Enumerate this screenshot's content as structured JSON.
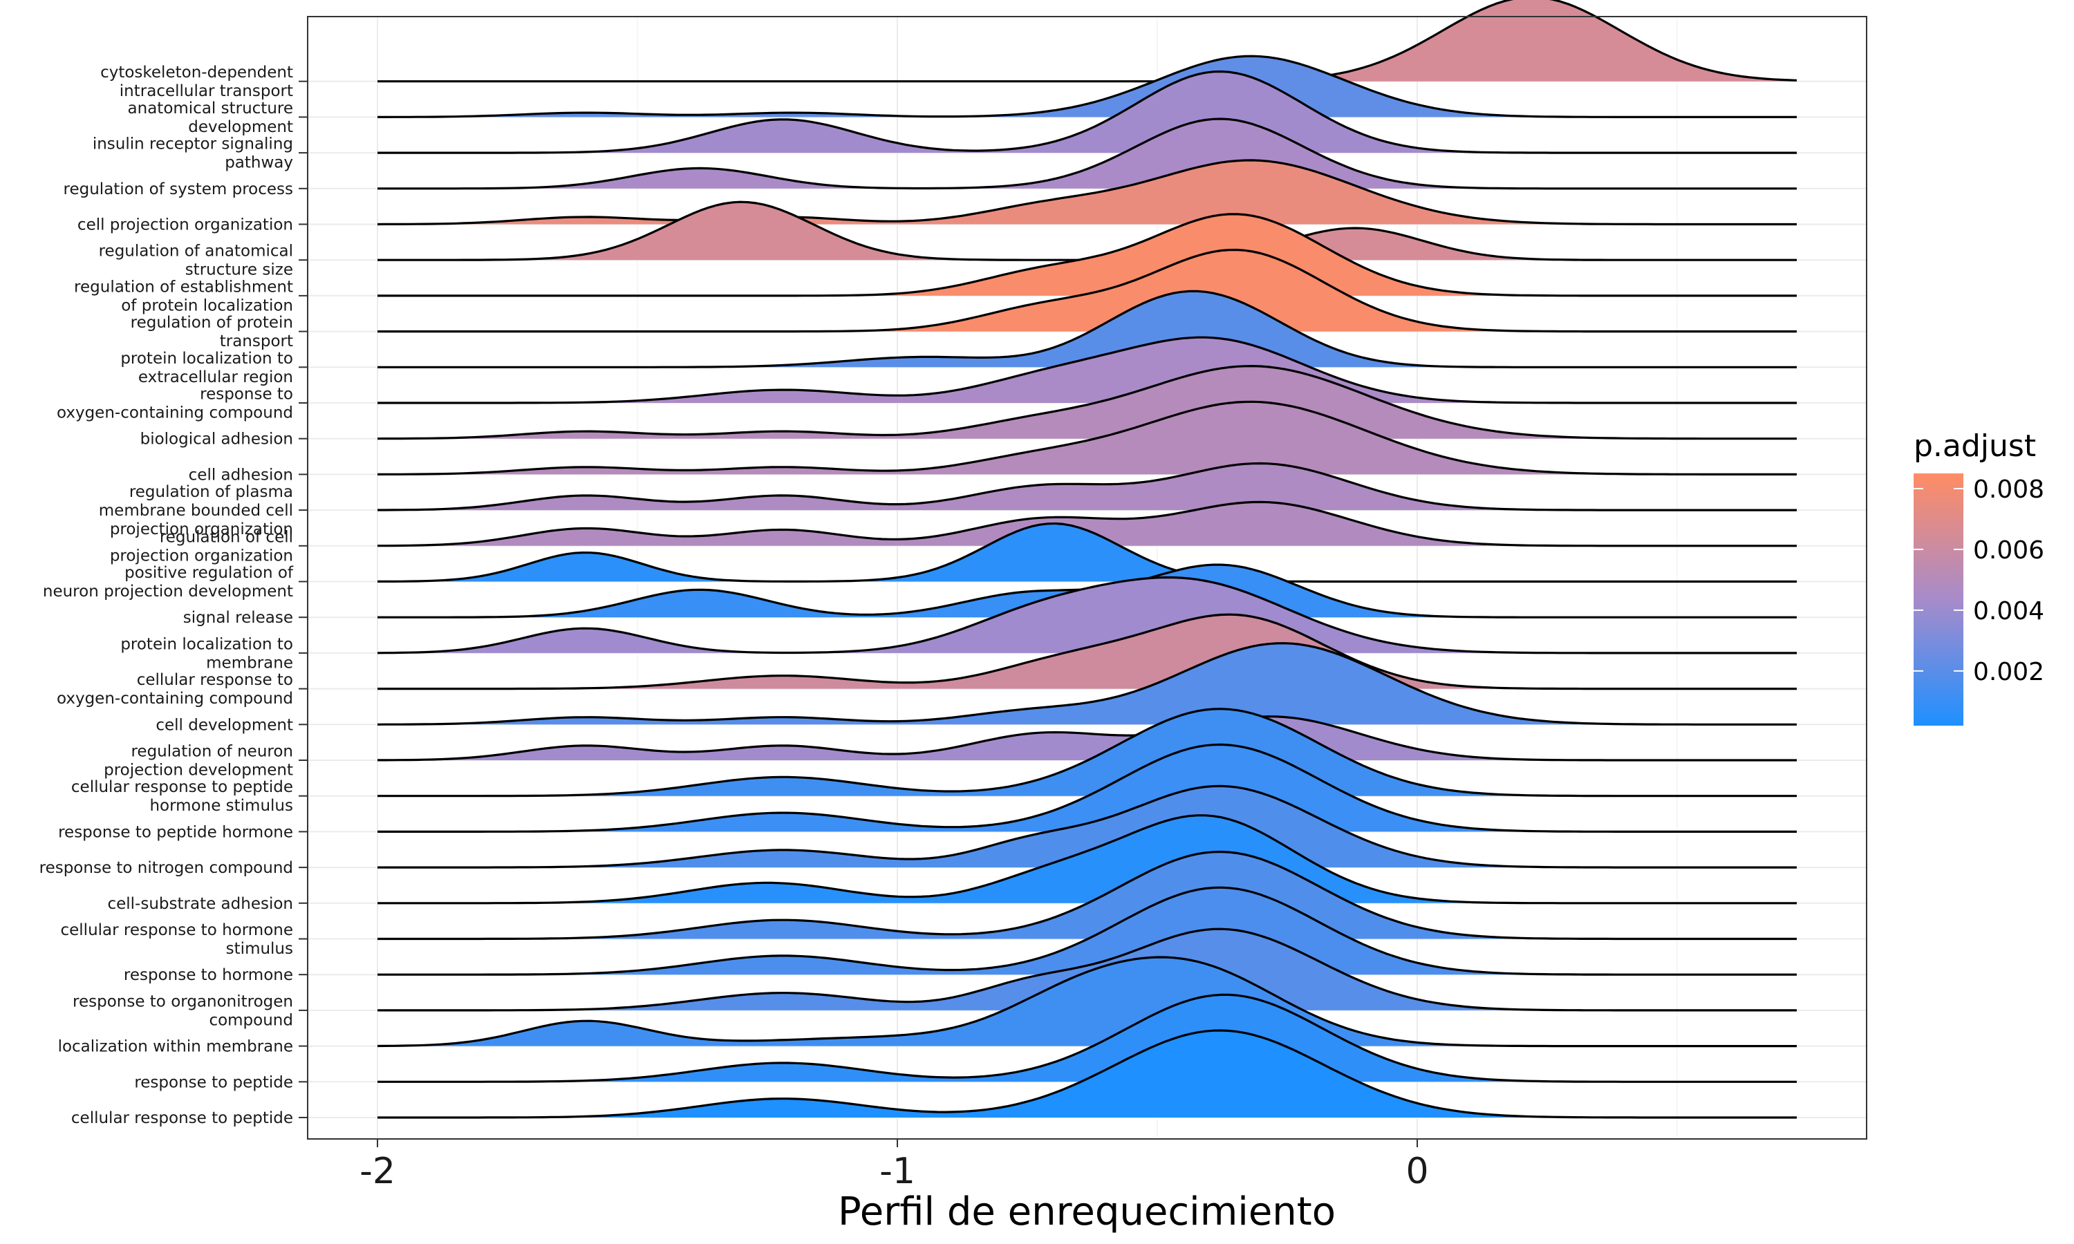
{
  "chart_data": {
    "type": "ridgeline",
    "xlabel": "Perfil de enrequecimiento",
    "xticks": [
      -2,
      -1,
      0
    ],
    "xlim": [
      -2.13,
      0.87
    ],
    "legend": {
      "title": "p.adjust",
      "position": "right",
      "ticks": [
        0.002,
        0.004,
        0.006,
        0.008
      ],
      "tick_labels": [
        "0.002",
        "0.004",
        "0.006",
        "0.008"
      ],
      "range": [
        0.0002,
        0.0085
      ],
      "color_low": "#1E90FF",
      "color_mid": "#A78BCB",
      "color_high": "#FF8C64"
    },
    "grid": true,
    "series": [
      {
        "label": [
          "cellular response to peptide"
        ],
        "p_adjust": 0.0002,
        "peaks": [
          [
            -1.22,
            0.065,
            0.16
          ],
          [
            -0.38,
            0.3,
            0.2
          ]
        ]
      },
      {
        "label": [
          "response to peptide"
        ],
        "p_adjust": 0.0007,
        "peaks": [
          [
            -1.22,
            0.065,
            0.16
          ],
          [
            -0.37,
            0.3,
            0.19
          ]
        ]
      },
      {
        "label": [
          "localization within membrane"
        ],
        "p_adjust": 0.0012,
        "peaks": [
          [
            -1.6,
            0.085,
            0.12
          ],
          [
            -1.0,
            0.03,
            0.25
          ],
          [
            -0.68,
            0.085,
            0.13
          ],
          [
            -0.45,
            0.28,
            0.18
          ]
        ]
      },
      {
        "label": [
          "response to organonitrogen",
          "compound"
        ],
        "p_adjust": 0.0019,
        "peaks": [
          [
            -1.22,
            0.06,
            0.16
          ],
          [
            -0.75,
            0.07,
            0.11
          ],
          [
            -0.38,
            0.28,
            0.19
          ]
        ]
      },
      {
        "label": [
          "response to hormone"
        ],
        "p_adjust": 0.0016,
        "peaks": [
          [
            -1.22,
            0.065,
            0.16
          ],
          [
            -0.38,
            0.3,
            0.19
          ]
        ]
      },
      {
        "label": [
          "cellular response to hormone",
          "stimulus"
        ],
        "p_adjust": 0.0017,
        "peaks": [
          [
            -1.22,
            0.065,
            0.16
          ],
          [
            -0.38,
            0.3,
            0.19
          ]
        ]
      },
      {
        "label": [
          "cell-substrate adhesion"
        ],
        "p_adjust": 0.0005,
        "peaks": [
          [
            -1.25,
            0.07,
            0.15
          ],
          [
            -0.72,
            0.07,
            0.12
          ],
          [
            -0.41,
            0.3,
            0.17
          ]
        ]
      },
      {
        "label": [
          "response to nitrogen compound"
        ],
        "p_adjust": 0.0017,
        "peaks": [
          [
            -1.22,
            0.06,
            0.16
          ],
          [
            -0.75,
            0.065,
            0.11
          ],
          [
            -0.38,
            0.28,
            0.19
          ]
        ]
      },
      {
        "label": [
          "response to peptide hormone"
        ],
        "p_adjust": 0.0011,
        "peaks": [
          [
            -1.22,
            0.065,
            0.16
          ],
          [
            -0.38,
            0.3,
            0.19
          ]
        ]
      },
      {
        "label": [
          "cellular response to peptide",
          "hormone stimulus"
        ],
        "p_adjust": 0.0012,
        "peaks": [
          [
            -1.22,
            0.065,
            0.16
          ],
          [
            -0.38,
            0.3,
            0.19
          ]
        ]
      },
      {
        "label": [
          "regulation of neuron",
          "projection development"
        ],
        "p_adjust": 0.0042,
        "peaks": [
          [
            -1.6,
            0.05,
            0.12
          ],
          [
            -1.22,
            0.05,
            0.12
          ],
          [
            -0.72,
            0.09,
            0.14
          ],
          [
            -0.28,
            0.15,
            0.17
          ]
        ]
      },
      {
        "label": [
          "cell development"
        ],
        "p_adjust": 0.0019,
        "peaks": [
          [
            -1.6,
            0.025,
            0.12
          ],
          [
            -1.22,
            0.025,
            0.12
          ],
          [
            -0.75,
            0.04,
            0.13
          ],
          [
            -0.26,
            0.28,
            0.2
          ]
        ]
      },
      {
        "label": [
          "cellular response to",
          "oxygen-containing compound"
        ],
        "p_adjust": 0.0062,
        "peaks": [
          [
            -1.22,
            0.045,
            0.15
          ],
          [
            -0.68,
            0.085,
            0.14
          ],
          [
            -0.35,
            0.25,
            0.17
          ]
        ]
      },
      {
        "label": [
          "protein localization to",
          "membrane"
        ],
        "p_adjust": 0.0041,
        "peaks": [
          [
            -1.6,
            0.085,
            0.12
          ],
          [
            -0.75,
            0.085,
            0.14
          ],
          [
            -0.45,
            0.25,
            0.2
          ]
        ]
      },
      {
        "label": [
          "signal release"
        ],
        "p_adjust": 0.001,
        "peaks": [
          [
            -1.38,
            0.095,
            0.13
          ],
          [
            -0.75,
            0.08,
            0.13
          ],
          [
            -0.38,
            0.18,
            0.15
          ]
        ]
      },
      {
        "label": [
          "positive regulation of",
          "neuron projection development"
        ],
        "p_adjust": 0.0006,
        "peaks": [
          [
            -1.6,
            0.1,
            0.11
          ],
          [
            -0.7,
            0.2,
            0.13
          ]
        ]
      },
      {
        "label": [
          "regulation of cell",
          "projection organization"
        ],
        "p_adjust": 0.0048,
        "peaks": [
          [
            -1.6,
            0.06,
            0.12
          ],
          [
            -1.22,
            0.055,
            0.12
          ],
          [
            -0.72,
            0.09,
            0.14
          ],
          [
            -0.3,
            0.15,
            0.17
          ]
        ]
      },
      {
        "label": [
          "regulation of plasma",
          "membrane bounded cell",
          "projection organization"
        ],
        "p_adjust": 0.0047,
        "peaks": [
          [
            -1.6,
            0.05,
            0.12
          ],
          [
            -1.22,
            0.05,
            0.12
          ],
          [
            -0.72,
            0.08,
            0.14
          ],
          [
            -0.3,
            0.16,
            0.17
          ]
        ]
      },
      {
        "label": [
          "cell adhesion"
        ],
        "p_adjust": 0.005,
        "peaks": [
          [
            -1.6,
            0.025,
            0.12
          ],
          [
            -1.22,
            0.025,
            0.12
          ],
          [
            -0.75,
            0.04,
            0.13
          ],
          [
            -0.32,
            0.25,
            0.22
          ]
        ]
      },
      {
        "label": [
          "biological adhesion"
        ],
        "p_adjust": 0.005,
        "peaks": [
          [
            -1.6,
            0.025,
            0.12
          ],
          [
            -1.22,
            0.025,
            0.12
          ],
          [
            -0.75,
            0.04,
            0.13
          ],
          [
            -0.32,
            0.25,
            0.22
          ]
        ]
      },
      {
        "label": [
          "response to",
          "oxygen-containing compound"
        ],
        "p_adjust": 0.0045,
        "peaks": [
          [
            -1.22,
            0.045,
            0.15
          ],
          [
            -0.72,
            0.07,
            0.14
          ],
          [
            -0.4,
            0.22,
            0.18
          ]
        ]
      },
      {
        "label": [
          "protein localization to",
          "extracellular region"
        ],
        "p_adjust": 0.002,
        "peaks": [
          [
            -0.95,
            0.035,
            0.15
          ],
          [
            -0.55,
            0.06,
            0.12
          ],
          [
            -0.4,
            0.23,
            0.15
          ]
        ]
      },
      {
        "label": [
          "regulation of protein",
          "transport"
        ],
        "p_adjust": 0.0082,
        "peaks": [
          [
            -0.72,
            0.075,
            0.13
          ],
          [
            -0.35,
            0.28,
            0.17
          ]
        ]
      },
      {
        "label": [
          "regulation of establishment",
          "of protein localization"
        ],
        "p_adjust": 0.0082,
        "peaks": [
          [
            -0.72,
            0.075,
            0.13
          ],
          [
            -0.35,
            0.28,
            0.17
          ]
        ]
      },
      {
        "label": [
          "regulation of anatomical",
          "structure size"
        ],
        "p_adjust": 0.0065,
        "peaks": [
          [
            -1.3,
            0.2,
            0.14
          ],
          [
            -0.12,
            0.11,
            0.13
          ]
        ]
      },
      {
        "label": [
          "cell projection organization"
        ],
        "p_adjust": 0.0075,
        "peaks": [
          [
            -1.6,
            0.025,
            0.12
          ],
          [
            -1.22,
            0.025,
            0.12
          ],
          [
            -0.72,
            0.05,
            0.13
          ],
          [
            -0.32,
            0.22,
            0.2
          ]
        ]
      },
      {
        "label": [
          "regulation of system process"
        ],
        "p_adjust": 0.0045,
        "peaks": [
          [
            -1.38,
            0.07,
            0.13
          ],
          [
            -0.38,
            0.24,
            0.16
          ]
        ]
      },
      {
        "label": [
          "insulin receptor signaling",
          "pathway"
        ],
        "p_adjust": 0.0042,
        "peaks": [
          [
            -1.22,
            0.115,
            0.14
          ],
          [
            -0.38,
            0.28,
            0.16
          ]
        ]
      },
      {
        "label": [
          "anatomical structure",
          "development"
        ],
        "p_adjust": 0.0022,
        "peaks": [
          [
            -1.6,
            0.015,
            0.12
          ],
          [
            -1.2,
            0.015,
            0.12
          ],
          [
            -0.32,
            0.21,
            0.18
          ]
        ]
      },
      {
        "label": [
          "cytoskeleton-dependent",
          "intracellular transport"
        ],
        "p_adjust": 0.0065,
        "peaks": [
          [
            0.22,
            0.29,
            0.17
          ]
        ]
      }
    ]
  }
}
